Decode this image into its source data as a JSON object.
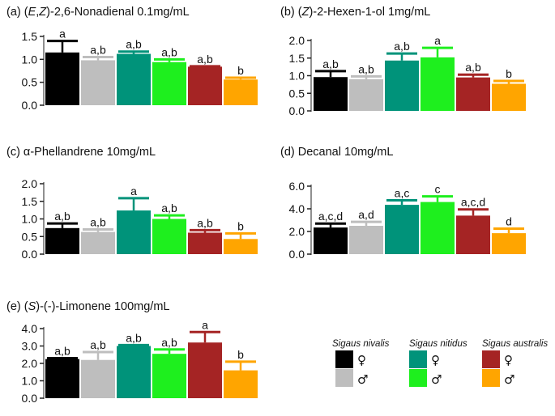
{
  "chart_data": [
    {
      "type": "bar",
      "panel": "(a)",
      "title_parts": [
        {
          "t": "(a) ("
        },
        {
          "t": "E",
          "italic": true
        },
        {
          "t": ","
        },
        {
          "t": "Z",
          "italic": true
        },
        {
          "t": ")-2,6-Nonadienal 0.1mg/mL"
        }
      ],
      "ylim": [
        0,
        1.5
      ],
      "yticks": [
        {
          "v": 0,
          "label": "0.0"
        },
        {
          "v": 0.5,
          "label": "0.5"
        },
        {
          "v": 1.0,
          "label": "1.0"
        },
        {
          "v": 1.5,
          "label": "1.5"
        }
      ],
      "values": [
        1.15,
        0.98,
        1.12,
        0.94,
        0.84,
        0.56
      ],
      "errors": [
        0.25,
        0.07,
        0.05,
        0.06,
        0.01,
        0.04
      ],
      "letters": [
        "a",
        "a,b",
        "a,b",
        "a,b",
        "a,b",
        "b"
      ]
    },
    {
      "type": "bar",
      "panel": "(b)",
      "title_parts": [
        {
          "t": "(b) ("
        },
        {
          "t": "Z",
          "italic": true
        },
        {
          "t": ")-2-Hexen-1-ol  1mg/mL"
        }
      ],
      "ylim": [
        0,
        2.0
      ],
      "yticks": [
        {
          "v": 0,
          "label": "0.0"
        },
        {
          "v": 0.5,
          "label": "0.5"
        },
        {
          "v": 1.0,
          "label": "1.0"
        },
        {
          "v": 1.5,
          "label": "1.5"
        },
        {
          "v": 2.0,
          "label": "2.0"
        }
      ],
      "values": [
        0.96,
        0.9,
        1.43,
        1.52,
        0.95,
        0.77
      ],
      "errors": [
        0.17,
        0.08,
        0.2,
        0.27,
        0.08,
        0.08
      ],
      "letters": [
        "a,b",
        "a,b",
        "a,b",
        "a",
        "a,b",
        "b"
      ]
    },
    {
      "type": "bar",
      "panel": "(c)",
      "title_parts": [
        {
          "t": "(c) α-Phellandrene 10mg/mL"
        }
      ],
      "ylim": [
        0,
        2.0
      ],
      "yticks": [
        {
          "v": 0,
          "label": "0.0"
        },
        {
          "v": 0.5,
          "label": "0.5"
        },
        {
          "v": 1.0,
          "label": "1.0"
        },
        {
          "v": 1.5,
          "label": "1.5"
        },
        {
          "v": 2.0,
          "label": "2.0"
        }
      ],
      "values": [
        0.74,
        0.63,
        1.24,
        1.0,
        0.61,
        0.43
      ],
      "errors": [
        0.13,
        0.07,
        0.35,
        0.1,
        0.07,
        0.16
      ],
      "letters": [
        "a,b",
        "a,b",
        "a",
        "a,b",
        "a,b",
        "b"
      ]
    },
    {
      "type": "bar",
      "panel": "(d)",
      "title_parts": [
        {
          "t": "(d) Decanal 10mg/mL"
        }
      ],
      "ylim": [
        0,
        6.0
      ],
      "yticks": [
        {
          "v": 0,
          "label": "0.0"
        },
        {
          "v": 2.0,
          "label": "2.0"
        },
        {
          "v": 4.0,
          "label": "4.0"
        },
        {
          "v": 6.0,
          "label": "6.0"
        }
      ],
      "values": [
        2.35,
        2.5,
        4.35,
        4.6,
        3.4,
        1.85
      ],
      "errors": [
        0.35,
        0.35,
        0.4,
        0.5,
        0.55,
        0.4
      ],
      "letters": [
        "a,c,d",
        "a,d",
        "a,c",
        "c",
        "a,c,d",
        "d"
      ]
    },
    {
      "type": "bar",
      "panel": "(e)",
      "title_parts": [
        {
          "t": "(e) ("
        },
        {
          "t": "S",
          "italic": true
        },
        {
          "t": ")-(-)-Limonene 100mg/mL"
        }
      ],
      "ylim": [
        0,
        4.0
      ],
      "yticks": [
        {
          "v": 0,
          "label": "0.0"
        },
        {
          "v": 1.0,
          "label": "1.0"
        },
        {
          "v": 2.0,
          "label": "2.0"
        },
        {
          "v": 3.0,
          "label": "3.0"
        },
        {
          "v": 4.0,
          "label": "4.0"
        }
      ],
      "values": [
        2.25,
        2.2,
        3.0,
        2.55,
        3.2,
        1.6
      ],
      "errors": [
        0.05,
        0.45,
        0.05,
        0.25,
        0.6,
        0.5
      ],
      "letters": [
        "a,b",
        "a,b",
        "a,b",
        "a,b",
        "a",
        "b"
      ]
    }
  ],
  "bar_colors": [
    "#000000",
    "#bebebe",
    "#00937a",
    "#1eef1e",
    "#a52424",
    "#ffa500"
  ],
  "legend": {
    "species": [
      {
        "name": "Sigaus nivalis",
        "female_color": "#000000",
        "male_color": "#bebebe"
      },
      {
        "name": "Sigaus nitidus",
        "female_color": "#00937a",
        "male_color": "#1eef1e"
      },
      {
        "name": "Sigaus australis",
        "female_color": "#a52424",
        "male_color": "#ffa500"
      }
    ],
    "female_symbol": "♀",
    "male_symbol": "♂"
  }
}
